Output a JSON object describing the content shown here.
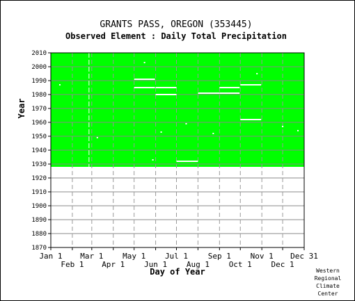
{
  "chart_data": {
    "type": "scatter",
    "title": "GRANTS PASS, OREGON   (353445)",
    "subtitle": "Observed Element : Daily Total Precipitation",
    "xlabel": "Day of Year",
    "ylabel": "Year",
    "xlim": [
      1,
      366
    ],
    "ylim": [
      1870,
      2010
    ],
    "y_ticks": [
      1870,
      1880,
      1890,
      1900,
      1910,
      1920,
      1930,
      1940,
      1950,
      1960,
      1970,
      1980,
      1990,
      2000,
      2010
    ],
    "x_ticks_upper": [
      {
        "label": "Jan 1",
        "day": 1
      },
      {
        "label": "Mar 1",
        "day": 60
      },
      {
        "label": "May 1",
        "day": 121
      },
      {
        "label": "Jul 1",
        "day": 182
      },
      {
        "label": "Sep 1",
        "day": 244
      },
      {
        "label": "Nov 1",
        "day": 305
      },
      {
        "label": "Dec 31",
        "day": 366
      }
    ],
    "x_ticks_lower": [
      {
        "label": "Feb 1",
        "day": 32
      },
      {
        "label": "Apr 1",
        "day": 91
      },
      {
        "label": "Jun 1",
        "day": 152
      },
      {
        "label": "Aug 1",
        "day": 213
      },
      {
        "label": "Oct 1",
        "day": 274
      },
      {
        "label": "Dec 1",
        "day": 335
      }
    ],
    "grid": true,
    "data_coverage": {
      "first_year": 1928,
      "last_year": 2010,
      "color": "#00ff00"
    },
    "missing_spans": [
      {
        "year": 1932,
        "start_day": 182,
        "end_day": 213
      },
      {
        "year": 1962,
        "start_day": 274,
        "end_day": 304
      },
      {
        "year": 1980,
        "start_day": 152,
        "end_day": 182
      },
      {
        "year": 1981,
        "start_day": 213,
        "end_day": 244
      },
      {
        "year": 1981,
        "start_day": 244,
        "end_day": 273
      },
      {
        "year": 1985,
        "start_day": 121,
        "end_day": 151
      },
      {
        "year": 1985,
        "start_day": 152,
        "end_day": 182
      },
      {
        "year": 1985,
        "start_day": 244,
        "end_day": 273
      },
      {
        "year": 1987,
        "start_day": 274,
        "end_day": 304
      },
      {
        "year": 1991,
        "start_day": 121,
        "end_day": 151
      }
    ],
    "missing_days": [
      {
        "year": 1987,
        "day": 14
      },
      {
        "year": 1949,
        "day": 68
      },
      {
        "year": 2003,
        "day": 136
      },
      {
        "year": 1933,
        "day": 148
      },
      {
        "year": 1953,
        "day": 160
      },
      {
        "year": 1959,
        "day": 196
      },
      {
        "year": 1952,
        "day": 235
      },
      {
        "year": 1995,
        "day": 298
      },
      {
        "year": 1957,
        "day": 335
      },
      {
        "year": 1954,
        "day": 357
      }
    ],
    "missing_year_lines": [
      {
        "day": 56,
        "start_year": 1928,
        "end_year": 2010
      }
    ]
  },
  "credit": [
    "Western",
    "Regional",
    "Climate",
    "Center"
  ]
}
